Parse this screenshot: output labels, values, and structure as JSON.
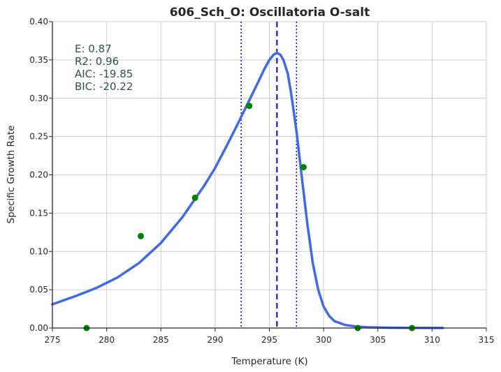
{
  "chart_data": {
    "type": "scatter",
    "title": "606_Sch_O: Oscillatoria O-salt",
    "xlabel": "Temperature (K)",
    "ylabel": "Specific Growth Rate",
    "xlim": [
      275,
      315
    ],
    "ylim": [
      0,
      0.4
    ],
    "xticks": [
      275,
      280,
      285,
      290,
      295,
      300,
      305,
      310,
      315
    ],
    "xtick_labels": [
      "275",
      "280",
      "285",
      "290",
      "295",
      "300",
      "305",
      "310",
      "315"
    ],
    "yticks": [
      0,
      0.05,
      0.1,
      0.15,
      0.2,
      0.25,
      0.3,
      0.35,
      0.4
    ],
    "ytick_labels": [
      "0.00",
      "0.05",
      "0.10",
      "0.15",
      "0.20",
      "0.25",
      "0.30",
      "0.35",
      "0.40"
    ],
    "grid": true,
    "annotations": [
      "E:  0.87",
      "R2:  0.96",
      "AIC: -19.85",
      "BIC: -20.22"
    ],
    "observed": {
      "color": "#008000",
      "x": [
        278.15,
        283.15,
        288.15,
        293.15,
        298.15,
        303.15,
        308.15
      ],
      "y": [
        0.0,
        0.12,
        0.17,
        0.29,
        0.21,
        0.0,
        0.0
      ]
    },
    "fitted_curve": {
      "color": "#4169e1",
      "x": [
        275,
        277,
        279,
        281,
        283,
        285,
        287,
        289,
        290,
        291,
        292,
        293,
        294,
        294.5,
        295,
        295.4,
        295.7,
        296,
        296.3,
        296.7,
        297,
        297.5,
        298,
        298.5,
        299,
        299.5,
        300,
        300.5,
        301,
        302,
        303,
        304,
        306,
        308,
        311
      ],
      "y": [
        0.031,
        0.041,
        0.052,
        0.066,
        0.085,
        0.111,
        0.145,
        0.186,
        0.209,
        0.236,
        0.264,
        0.293,
        0.322,
        0.337,
        0.35,
        0.357,
        0.359,
        0.357,
        0.35,
        0.332,
        0.307,
        0.257,
        0.196,
        0.136,
        0.085,
        0.05,
        0.028,
        0.016,
        0.009,
        0.004,
        0.002,
        0.001,
        0.0004,
        0.0002,
        0.0001
      ]
    },
    "vlines": [
      {
        "x": 292.4,
        "style": "dotted",
        "color": "#0000ff"
      },
      {
        "x": 295.7,
        "style": "dashed",
        "color": "#0000ff"
      },
      {
        "x": 297.5,
        "style": "dotted",
        "color": "#0000ff"
      }
    ],
    "colors": {
      "grid": "#cccccc",
      "axis": "#262626",
      "text": "#262626",
      "annotation": "#2f4f4f"
    }
  }
}
